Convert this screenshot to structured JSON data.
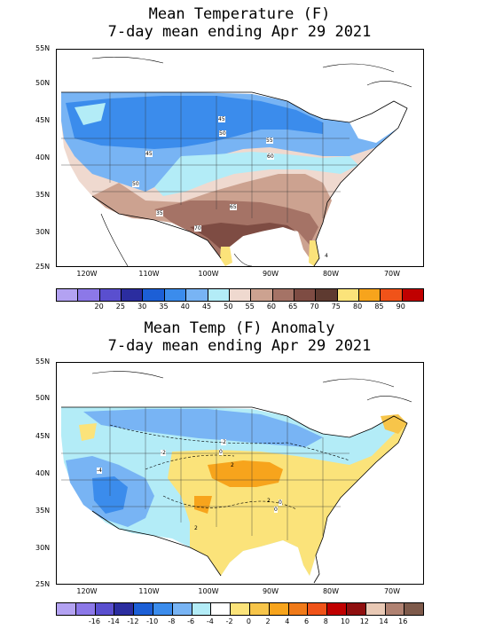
{
  "panels": [
    {
      "title_line1": "Mean Temperature (F)",
      "title_line2": "7-day mean ending Apr 29 2021",
      "lat_labels": [
        "55N",
        "50N",
        "45N",
        "40N",
        "35N",
        "30N",
        "25N"
      ],
      "lon_labels": [
        "120W",
        "110W",
        "100W",
        "90W",
        "80W",
        "70W"
      ],
      "contour_labels": [
        "45",
        "50",
        "55",
        "60",
        "45",
        "50",
        "35",
        "65",
        "70",
        "4"
      ],
      "colorbar_colors": [
        "#b3a2f2",
        "#8c78e8",
        "#5a4fcf",
        "#2b2d9f",
        "#1c5fd6",
        "#3b8cec",
        "#78b4f4",
        "#b3ecf7",
        "#efd9cf",
        "#cca290",
        "#a57366",
        "#7e4c43",
        "#5e3a30",
        "#fbe37a",
        "#f7a41c",
        "#f05319",
        "#c00000"
      ],
      "colorbar_labels": [
        "20",
        "25",
        "30",
        "35",
        "40",
        "45",
        "50",
        "55",
        "60",
        "65",
        "70",
        "75",
        "80",
        "85",
        "90"
      ]
    },
    {
      "title_line1": "Mean Temp (F) Anomaly",
      "title_line2": "7-day mean ending Apr 29 2021",
      "lat_labels": [
        "55N",
        "50N",
        "45N",
        "40N",
        "35N",
        "30N",
        "25N"
      ],
      "lon_labels": [
        "120W",
        "110W",
        "100W",
        "90W",
        "80W",
        "70W"
      ],
      "contour_labels": [
        "-2",
        "0",
        "2",
        "-4",
        "2",
        "0",
        "0",
        "2",
        "-2"
      ],
      "colorbar_colors": [
        "#b3a2f2",
        "#8c78e8",
        "#5a4fcf",
        "#2b2d9f",
        "#1c5fd6",
        "#3b8cec",
        "#78b4f4",
        "#b3ecf7",
        "#ffffff",
        "#fbe37a",
        "#f7c54a",
        "#f7a41c",
        "#f07a19",
        "#f05319",
        "#c00000",
        "#8f0f0f",
        "#e9c9b5",
        "#b08272",
        "#7e5a4b"
      ],
      "colorbar_labels": [
        "-16",
        "-14",
        "-12",
        "-10",
        "-8",
        "-6",
        "-4",
        "-2",
        "0",
        "2",
        "4",
        "6",
        "8",
        "10",
        "12",
        "14",
        "16"
      ]
    }
  ]
}
